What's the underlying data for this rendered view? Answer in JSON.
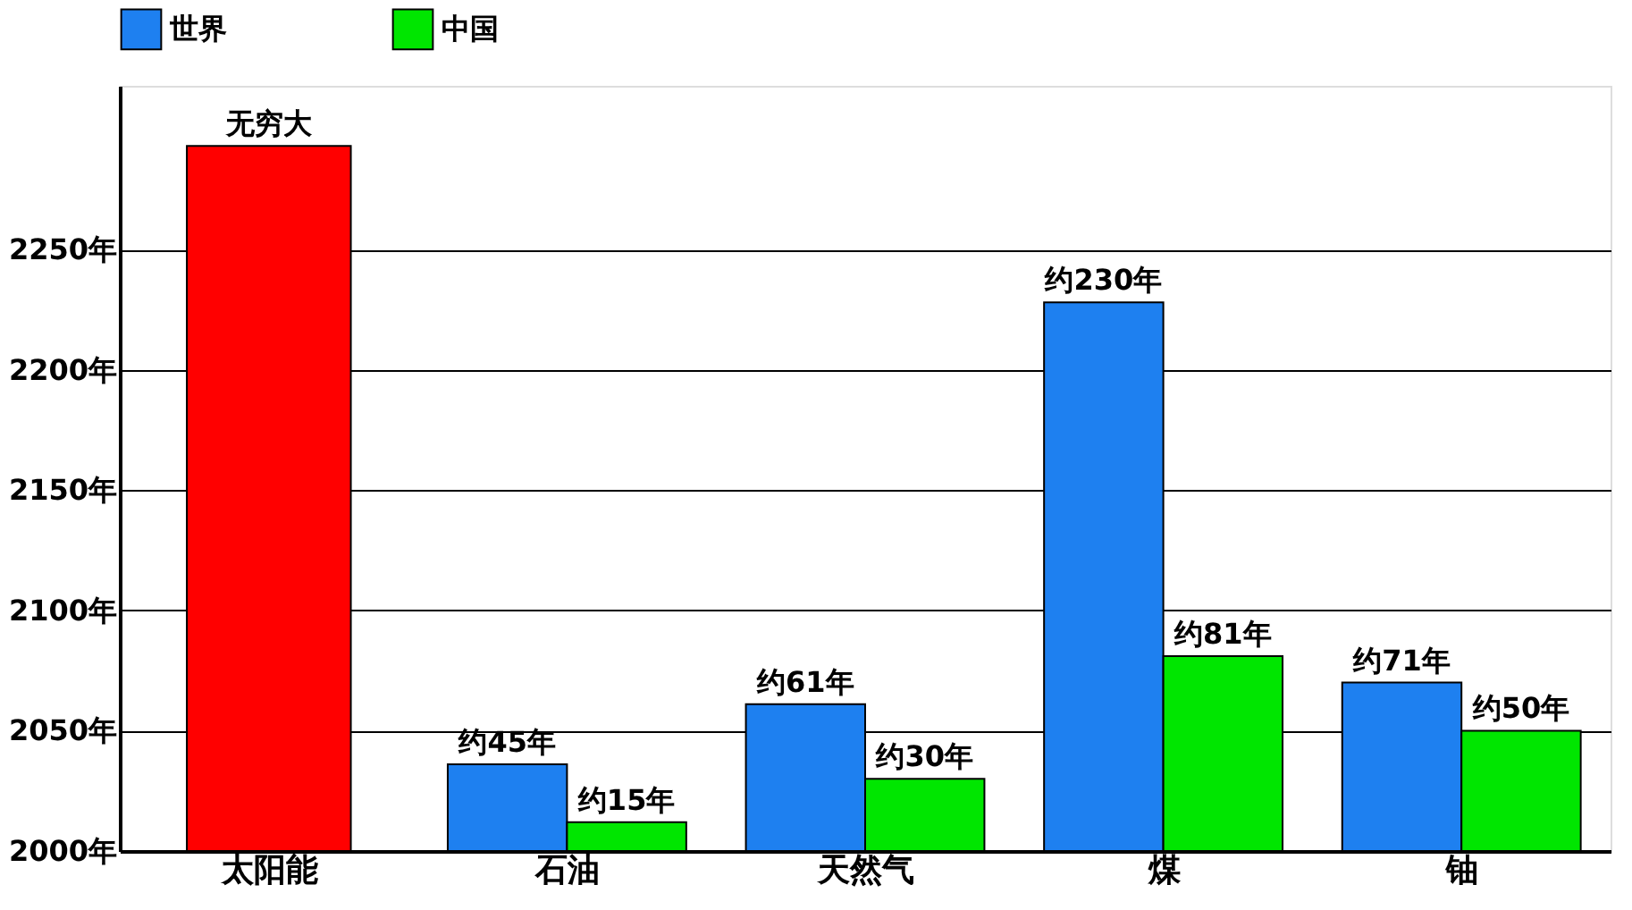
{
  "chart_data": {
    "type": "bar",
    "categories": [
      "太阳能",
      "石油",
      "天然气",
      "煤",
      "铀"
    ],
    "series": [
      {
        "color": "#ff0000",
        "values": [
          2293,
          null,
          null,
          null,
          null
        ],
        "value_labels": [
          "无穷大",
          null,
          null,
          null,
          null
        ]
      },
      {
        "name": "世界",
        "color": "#1e80f0",
        "values": [
          null,
          2036,
          2061,
          2228,
          2070
        ],
        "value_labels": [
          null,
          "约45年",
          "约61年",
          "约230年",
          "约71年"
        ]
      },
      {
        "name": "中国",
        "color": "#00e600",
        "values": [
          null,
          2012,
          2030,
          2081,
          2050
        ],
        "value_labels": [
          null,
          "约15年",
          "约30年",
          "约81年",
          "约50年"
        ]
      }
    ],
    "ylim": [
      2000,
      2318
    ],
    "yticks": [
      {
        "value": 2000,
        "label": "2000年"
      },
      {
        "value": 2050,
        "label": "2050年"
      },
      {
        "value": 2100,
        "label": "2100年"
      },
      {
        "value": 2150,
        "label": "2150年"
      },
      {
        "value": 2200,
        "label": "2200年"
      },
      {
        "value": 2250,
        "label": "2250年"
      }
    ],
    "grid": "y",
    "legend": "top"
  }
}
